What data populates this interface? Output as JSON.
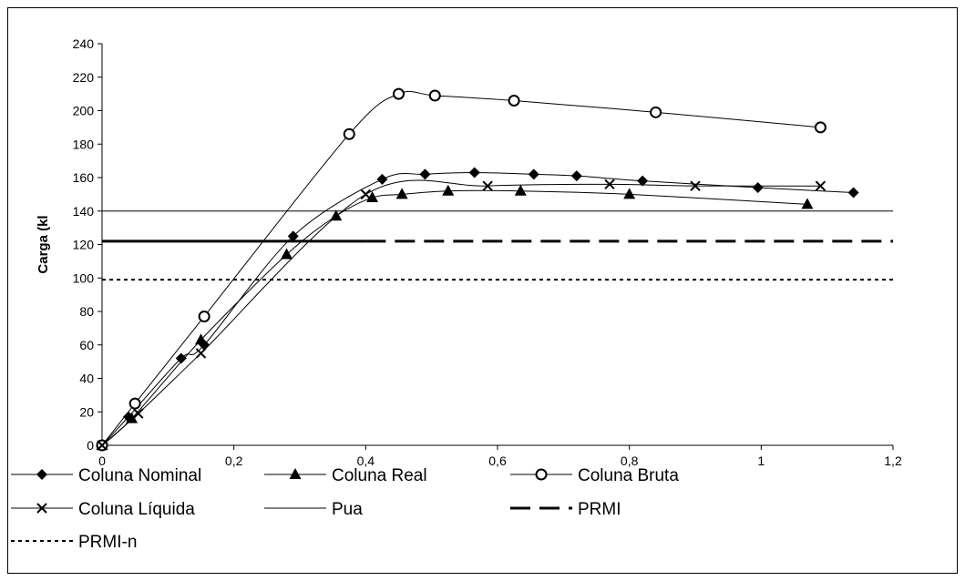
{
  "chart_data": {
    "type": "line",
    "title": "",
    "xlabel": "",
    "ylabel": "Carga (kl",
    "xlim": [
      0,
      1.2
    ],
    "ylim": [
      0,
      240
    ],
    "x_ticks": [
      "0",
      "0,2",
      "0,4",
      "0,6",
      "0,8",
      "1",
      "1,2"
    ],
    "y_ticks": [
      "0",
      "20",
      "40",
      "60",
      "80",
      "100",
      "120",
      "140",
      "160",
      "180",
      "200",
      "220",
      "240"
    ],
    "grid": false,
    "legend_position": "bottom",
    "series": [
      {
        "name": "Coluna Nominal",
        "marker": "diamond",
        "line": "solid",
        "x": [
          0,
          0.04,
          0.12,
          0.155,
          0.29,
          0.425,
          0.49,
          0.565,
          0.655,
          0.72,
          0.82,
          0.995,
          1.14
        ],
        "y": [
          0,
          17,
          52,
          60,
          125,
          159,
          162,
          163,
          162,
          161,
          158,
          154,
          151
        ]
      },
      {
        "name": "Coluna Real",
        "marker": "triangle",
        "line": "solid",
        "x": [
          0,
          0.045,
          0.15,
          0.28,
          0.355,
          0.41,
          0.455,
          0.525,
          0.635,
          0.8,
          1.07
        ],
        "y": [
          0,
          16,
          63,
          114,
          137,
          148,
          150,
          152,
          152,
          150,
          144
        ]
      },
      {
        "name": "Coluna Bruta",
        "marker": "circle",
        "line": "solid",
        "x": [
          0,
          0.05,
          0.155,
          0.375,
          0.45,
          0.505,
          0.625,
          0.84,
          1.09
        ],
        "y": [
          0,
          25,
          77,
          186,
          210,
          209,
          206,
          199,
          190
        ]
      },
      {
        "name": "Coluna Líquida",
        "marker": "cross",
        "line": "solid",
        "x": [
          0,
          0.055,
          0.15,
          0.4,
          0.585,
          0.77,
          0.9,
          1.09
        ],
        "y": [
          0,
          19,
          55,
          150,
          155,
          156,
          155,
          155
        ]
      },
      {
        "name": "Pua",
        "marker": "none",
        "line": "thin",
        "y_const": 140
      },
      {
        "name": "PRMI",
        "marker": "none",
        "line": "dashed",
        "y_const": 122
      },
      {
        "name": "PRMI-n",
        "marker": "none",
        "line": "dotted",
        "y_const": 99
      }
    ]
  }
}
